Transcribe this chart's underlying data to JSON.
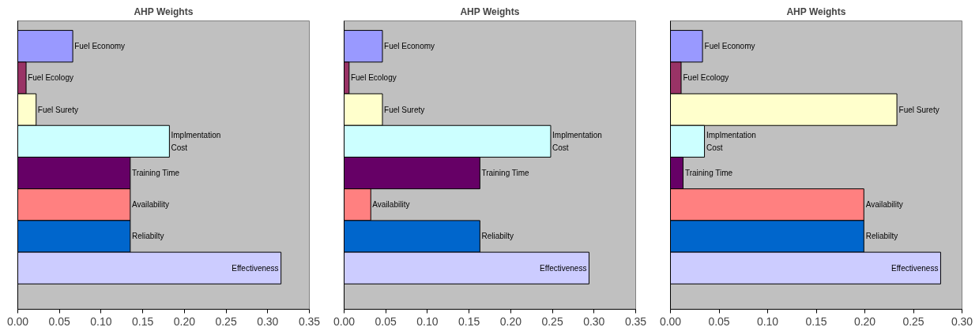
{
  "chart_data": [
    {
      "type": "bar",
      "orientation": "horizontal",
      "title": "AHP Weights",
      "categories": [
        "Fuel Economy",
        "Fuel Ecology",
        "Fuel Surety",
        "Implmentation Cost",
        "Training Time",
        "Availability",
        "Reliabilty",
        "Effectiveness"
      ],
      "values": [
        0.066,
        0.01,
        0.022,
        0.182,
        0.135,
        0.135,
        0.135,
        0.316
      ],
      "colors": [
        "#9999ff",
        "#993366",
        "#ffffcc",
        "#ccffff",
        "#660066",
        "#ff8080",
        "#0066cc",
        "#ccccff"
      ],
      "xlim": [
        0,
        0.35
      ],
      "xticks": [
        {
          "value": 0,
          "label": "0.00"
        },
        {
          "value": 0.05,
          "label": "0.05"
        },
        {
          "value": 0.1,
          "label": "0.10"
        },
        {
          "value": 0.15,
          "label": "0.15"
        },
        {
          "value": 0.2,
          "label": "0.20"
        },
        {
          "value": 0.25,
          "label": "0.25"
        },
        {
          "value": 0.3,
          "label": "0.30"
        },
        {
          "value": 0.35,
          "label": "0.35"
        }
      ],
      "grid": false,
      "tick_labels": "x"
    },
    {
      "type": "bar",
      "orientation": "horizontal",
      "title": "AHP Weights",
      "categories": [
        "Fuel Economy",
        "Fuel Ecology",
        "Fuel Surety",
        "Implmentation Cost",
        "Training Time",
        "Availability",
        "Reliabilty",
        "Effectiveness"
      ],
      "values": [
        0.046,
        0.006,
        0.046,
        0.248,
        0.163,
        0.032,
        0.163,
        0.294
      ],
      "colors": [
        "#9999ff",
        "#993366",
        "#ffffcc",
        "#ccffff",
        "#660066",
        "#ff8080",
        "#0066cc",
        "#ccccff"
      ],
      "xlim": [
        0,
        0.35
      ],
      "xticks": [
        {
          "value": 0,
          "label": "0.00"
        },
        {
          "value": 0.05,
          "label": "0.05"
        },
        {
          "value": 0.1,
          "label": "0.10"
        },
        {
          "value": 0.15,
          "label": "0.15"
        },
        {
          "value": 0.2,
          "label": "0.20"
        },
        {
          "value": 0.25,
          "label": "0.25"
        },
        {
          "value": 0.3,
          "label": "0.30"
        },
        {
          "value": 0.35,
          "label": "0.35"
        }
      ],
      "grid": false,
      "tick_labels": "x"
    },
    {
      "type": "bar",
      "orientation": "horizontal",
      "title": "AHP Weights",
      "categories": [
        "Fuel Economy",
        "Fuel Ecology",
        "Fuel Surety",
        "Implmentation Cost",
        "Training Time",
        "Availability",
        "Reliabilty",
        "Effectiveness"
      ],
      "values": [
        0.033,
        0.011,
        0.233,
        0.035,
        0.013,
        0.199,
        0.199,
        0.278
      ],
      "colors": [
        "#9999ff",
        "#993366",
        "#ffffcc",
        "#ccffff",
        "#660066",
        "#ff8080",
        "#0066cc",
        "#ccccff"
      ],
      "xlim": [
        0,
        0.3
      ],
      "xticks": [
        {
          "value": 0,
          "label": "0.00"
        },
        {
          "value": 0.05,
          "label": "0.05"
        },
        {
          "value": 0.1,
          "label": "0.10"
        },
        {
          "value": 0.15,
          "label": "0.15"
        },
        {
          "value": 0.2,
          "label": "0.20"
        },
        {
          "value": 0.25,
          "label": "0.25"
        },
        {
          "value": 0.3,
          "label": "0.30"
        }
      ],
      "grid": false,
      "tick_labels": "x"
    }
  ]
}
